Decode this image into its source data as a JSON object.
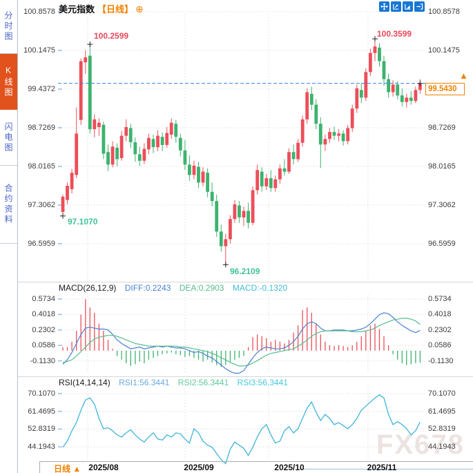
{
  "sidebar": {
    "tabs": [
      {
        "label": "分时图",
        "active": false
      },
      {
        "label": "K线图",
        "active": true
      },
      {
        "label": "闪电图",
        "active": false
      },
      {
        "label": "合约资料",
        "active": false
      }
    ]
  },
  "header": {
    "symbol": "美元指数",
    "period": "【日线】",
    "add_icon": "⊕"
  },
  "toolbar": {
    "icons": [
      "pan",
      "zoom-horizontal-axis",
      "zoom-vertical-axis",
      "exit-view"
    ]
  },
  "main_chart": {
    "y_labels": [
      "100.8578",
      "100.1475",
      "99.4372",
      "98.7269",
      "98.0165",
      "97.3062",
      "96.5959"
    ],
    "annotations": {
      "high_aug": "100.2599",
      "high_nov": "100.3599",
      "low_jul": "97.1070",
      "low_sep": "96.2109"
    },
    "current_price": "99.5430",
    "current_marker": "▲"
  },
  "macd_panel": {
    "title": "MACD(26,12,9)",
    "diff_label": "DIFF:0.2243",
    "dea_label": "DEA:0.2903",
    "macd_label": "MACD:-0.1320",
    "y_labels": [
      "0.5734",
      "0.4018",
      "0.2302",
      "0.0586",
      "-0.1130"
    ]
  },
  "rsi_panel": {
    "title": "RSI(14,14,14)",
    "rsi1_label": "RSI1:56.3441",
    "rsi2_label": "RSI2:56.3441",
    "rsi3_label": "RSI3:56.3441",
    "y_labels": [
      "70.1070",
      "61.4695",
      "52.8319",
      "44.1943"
    ]
  },
  "bottom_bar": {
    "period_label": "日线",
    "arrow": "▲",
    "x_labels": [
      "2025/08",
      "2025/09",
      "2025/10",
      "2025/11"
    ]
  },
  "watermark": "FX678",
  "colors": {
    "up": "#ec4e5a",
    "down": "#3db26e",
    "accent_orange": "#f08200",
    "active_tab_bg": "#e2521d",
    "sidebar_text": "#4863c6",
    "icon_bg": "#1777d3",
    "dashed_line": "#2a7ce0",
    "diff_line": "#4a7fd4",
    "dea_line": "#55bd8d",
    "macd_text": "#3fbcd9",
    "rsi_line": "#3fb4d8",
    "annotation_red": "#e8485a",
    "annotation_green": "#3fc39a"
  },
  "chart_data": {
    "type": "candlestick+indicators",
    "symbol": "美元指数",
    "interval": "日线",
    "x_labels": [
      "2025/08",
      "2025/09",
      "2025/10",
      "2025/11"
    ],
    "y_axis_ticks": [
      100.8578,
      100.1475,
      99.4372,
      98.7269,
      98.0165,
      97.3062,
      96.5959
    ],
    "current_price": 99.543,
    "extremes": {
      "high_aug": 100.2599,
      "high_nov": 100.3599,
      "low_jul": 97.107,
      "low_sep": 96.2109
    },
    "marker_points": [
      [
        0,
        97.107
      ],
      [
        6,
        100.2599
      ],
      [
        36,
        96.2109
      ],
      [
        69,
        100.3599
      ],
      [
        79,
        99.543
      ]
    ],
    "candles_ohlc": [
      [
        97.18,
        97.5,
        97.107,
        97.46
      ],
      [
        97.4,
        97.72,
        97.32,
        97.66
      ],
      [
        97.6,
        97.97,
        97.52,
        97.9
      ],
      [
        97.86,
        99.1,
        97.8,
        98.62
      ],
      [
        98.87,
        100.0,
        98.78,
        99.95
      ],
      [
        99.93,
        100.15,
        99.72,
        100.02
      ],
      [
        100.05,
        100.2599,
        98.62,
        98.7
      ],
      [
        98.7,
        98.97,
        98.55,
        98.88
      ],
      [
        98.74,
        98.9,
        98.58,
        98.82
      ],
      [
        98.78,
        98.84,
        98.15,
        98.25
      ],
      [
        98.28,
        98.42,
        97.93,
        98.05
      ],
      [
        98.05,
        98.48,
        98.0,
        98.38
      ],
      [
        98.36,
        98.44,
        98.02,
        98.15
      ],
      [
        98.17,
        98.67,
        98.12,
        98.58
      ],
      [
        98.58,
        98.88,
        98.48,
        98.74
      ],
      [
        98.72,
        98.8,
        98.35,
        98.46
      ],
      [
        98.46,
        98.55,
        98.1,
        98.24
      ],
      [
        98.24,
        98.38,
        98.02,
        98.12
      ],
      [
        98.12,
        98.44,
        98.06,
        98.34
      ],
      [
        98.33,
        98.62,
        98.24,
        98.54
      ],
      [
        98.52,
        98.6,
        98.26,
        98.37
      ],
      [
        98.37,
        98.68,
        98.3,
        98.58
      ],
      [
        98.56,
        98.64,
        98.3,
        98.41
      ],
      [
        98.41,
        98.74,
        98.36,
        98.63
      ],
      [
        98.6,
        98.9,
        98.52,
        98.82
      ],
      [
        98.8,
        98.87,
        98.45,
        98.56
      ],
      [
        98.54,
        98.62,
        98.2,
        98.31
      ],
      [
        98.31,
        98.5,
        97.95,
        98.05
      ],
      [
        98.05,
        98.22,
        97.75,
        97.86
      ],
      [
        97.86,
        98.12,
        97.78,
        98.03
      ],
      [
        98.01,
        98.1,
        97.62,
        97.72
      ],
      [
        97.72,
        98.0,
        97.65,
        97.92
      ],
      [
        97.9,
        97.98,
        97.45,
        97.55
      ],
      [
        97.55,
        97.72,
        97.28,
        97.38
      ],
      [
        97.38,
        97.5,
        96.72,
        96.82
      ],
      [
        96.82,
        96.95,
        96.45,
        96.55
      ],
      [
        96.55,
        96.78,
        96.2109,
        96.68
      ],
      [
        96.68,
        97.12,
        96.6,
        97.05
      ],
      [
        97.05,
        97.4,
        96.98,
        97.32
      ],
      [
        97.3,
        97.38,
        96.98,
        97.08
      ],
      [
        97.08,
        97.28,
        96.92,
        97.2
      ],
      [
        97.2,
        97.35,
        96.88,
        96.98
      ],
      [
        96.98,
        97.65,
        96.94,
        97.58
      ],
      [
        97.58,
        98.05,
        97.5,
        97.95
      ],
      [
        97.92,
        98.0,
        97.55,
        97.65
      ],
      [
        97.65,
        97.88,
        97.58,
        97.8
      ],
      [
        97.8,
        97.95,
        97.55,
        97.62
      ],
      [
        97.62,
        97.85,
        97.55,
        97.78
      ],
      [
        97.78,
        98.05,
        97.7,
        97.98
      ],
      [
        97.98,
        98.15,
        97.85,
        97.92
      ],
      [
        97.92,
        98.35,
        97.88,
        98.28
      ],
      [
        98.28,
        98.42,
        98.05,
        98.15
      ],
      [
        98.15,
        98.52,
        98.1,
        98.45
      ],
      [
        98.45,
        98.95,
        98.38,
        98.88
      ],
      [
        98.88,
        99.45,
        98.8,
        99.38
      ],
      [
        99.35,
        99.48,
        99.05,
        99.15
      ],
      [
        99.15,
        99.25,
        98.7,
        98.8
      ],
      [
        98.8,
        98.92,
        97.99,
        98.42
      ],
      [
        98.42,
        98.6,
        98.3,
        98.52
      ],
      [
        98.52,
        98.72,
        98.45,
        98.65
      ],
      [
        98.65,
        98.75,
        98.5,
        98.58
      ],
      [
        98.58,
        98.7,
        98.48,
        98.62
      ],
      [
        98.62,
        98.68,
        98.4,
        98.48
      ],
      [
        98.48,
        98.78,
        98.42,
        98.72
      ],
      [
        98.72,
        99.15,
        98.65,
        99.08
      ],
      [
        99.08,
        99.52,
        99.0,
        99.45
      ],
      [
        99.42,
        99.55,
        99.18,
        99.28
      ],
      [
        99.28,
        99.82,
        99.22,
        99.75
      ],
      [
        99.75,
        100.18,
        99.68,
        100.1
      ],
      [
        100.1,
        100.3599,
        99.95,
        100.22
      ],
      [
        100.2,
        100.28,
        99.85,
        99.95
      ],
      [
        99.95,
        100.05,
        99.5,
        99.62
      ],
      [
        99.62,
        99.72,
        99.28,
        99.38
      ],
      [
        99.38,
        99.6,
        99.3,
        99.52
      ],
      [
        99.52,
        99.58,
        99.25,
        99.32
      ],
      [
        99.32,
        99.45,
        99.12,
        99.2
      ],
      [
        99.2,
        99.35,
        99.1,
        99.28
      ],
      [
        99.28,
        99.4,
        99.15,
        99.22
      ],
      [
        99.22,
        99.48,
        99.18,
        99.42
      ],
      [
        99.42,
        99.62,
        99.35,
        99.543
      ]
    ],
    "macd": {
      "params": [
        26,
        12,
        9
      ],
      "diff": 0.2243,
      "dea": 0.2903,
      "macd": -0.132,
      "y_ticks": [
        0.5734,
        0.4018,
        0.2302,
        0.0586,
        -0.113
      ],
      "histogram": [
        0.04,
        0.04,
        0.1,
        0.22,
        0.4,
        0.57,
        0.48,
        0.42,
        0.3,
        0.22,
        0.12,
        0.02,
        -0.06,
        -0.1,
        -0.14,
        -0.17,
        -0.15,
        -0.12,
        -0.14,
        -0.1,
        -0.08,
        -0.06,
        -0.04,
        -0.03,
        -0.02,
        -0.04,
        -0.05,
        -0.07,
        -0.06,
        -0.08,
        -0.1,
        -0.12,
        -0.1,
        -0.13,
        -0.16,
        -0.18,
        -0.16,
        -0.12,
        -0.1,
        -0.08,
        -0.06,
        0.04,
        0.15,
        0.18,
        0.16,
        0.14,
        0.1,
        0.12,
        0.1,
        0.08,
        0.12,
        0.2,
        0.28,
        0.45,
        0.48,
        0.42,
        0.3,
        0.18,
        0.1,
        0.06,
        0.05,
        0.06,
        0.05,
        0.04,
        0.06,
        0.1,
        0.16,
        0.22,
        0.28,
        0.3,
        0.24,
        0.16,
        0.06,
        -0.04,
        -0.1,
        -0.14,
        -0.16,
        -0.15,
        -0.14,
        -0.132
      ],
      "diff_series": [
        -0.15,
        -0.1,
        -0.02,
        0.08,
        0.18,
        0.25,
        0.26,
        0.25,
        0.24,
        0.24,
        0.23,
        0.18,
        0.12,
        0.08,
        0.05,
        0.02,
        0.03,
        0.04,
        0.02,
        0.03,
        0.04,
        0.05,
        0.04,
        0.05,
        0.04,
        0.03,
        0.03,
        0.02,
        0.0,
        -0.02,
        -0.01,
        -0.03,
        -0.06,
        -0.08,
        -0.12,
        -0.16,
        -0.2,
        -0.23,
        -0.25,
        -0.25,
        -0.22,
        -0.15,
        -0.08,
        -0.02,
        0.02,
        0.04,
        0.03,
        0.02,
        0.02,
        0.03,
        0.06,
        0.1,
        0.16,
        0.24,
        0.3,
        0.32,
        0.3,
        0.25,
        0.22,
        0.22,
        0.23,
        0.23,
        0.23,
        0.22,
        0.22,
        0.23,
        0.24,
        0.26,
        0.3,
        0.35,
        0.4,
        0.42,
        0.41,
        0.37,
        0.32,
        0.28,
        0.25,
        0.22,
        0.2,
        0.2243
      ],
      "dea_series": [
        -0.13,
        -0.12,
        -0.1,
        -0.06,
        -0.01,
        0.04,
        0.09,
        0.13,
        0.15,
        0.16,
        0.17,
        0.17,
        0.16,
        0.14,
        0.12,
        0.1,
        0.08,
        0.07,
        0.06,
        0.05,
        0.05,
        0.05,
        0.05,
        0.05,
        0.05,
        0.05,
        0.04,
        0.04,
        0.03,
        0.02,
        0.01,
        0.0,
        -0.01,
        -0.03,
        -0.05,
        -0.08,
        -0.1,
        -0.13,
        -0.15,
        -0.17,
        -0.17,
        -0.16,
        -0.14,
        -0.11,
        -0.08,
        -0.05,
        -0.03,
        -0.02,
        -0.01,
        0.0,
        0.01,
        0.02,
        0.05,
        0.08,
        0.12,
        0.16,
        0.19,
        0.21,
        0.22,
        0.22,
        0.22,
        0.22,
        0.22,
        0.22,
        0.21,
        0.21,
        0.21,
        0.22,
        0.23,
        0.25,
        0.28,
        0.3,
        0.32,
        0.34,
        0.35,
        0.36,
        0.36,
        0.35,
        0.33,
        0.2903
      ]
    },
    "rsi": {
      "params": [
        14,
        14,
        14
      ],
      "rsi1": 56.3441,
      "rsi2": 56.3441,
      "rsi3": 56.3441,
      "y_ticks": [
        70.107,
        61.4695,
        52.8319,
        44.1943
      ],
      "series": [
        44,
        47,
        52,
        56,
        62,
        67,
        68,
        65,
        58,
        53,
        53.5,
        52,
        50,
        49,
        51,
        52.5,
        50,
        48,
        46.5,
        49,
        51,
        48,
        47.5,
        50,
        49,
        51,
        50.5,
        48,
        46,
        53,
        51,
        47,
        45,
        44,
        41,
        38,
        36,
        43,
        46.5,
        45,
        43.5,
        40,
        44,
        49,
        53,
        55,
        50,
        46,
        47,
        52,
        54,
        51,
        53,
        58,
        63,
        66,
        61,
        57,
        60,
        58,
        55,
        56,
        54.5,
        53,
        55,
        58,
        62,
        64,
        66,
        68,
        69.5,
        68,
        60,
        55,
        56.5,
        55,
        53,
        50,
        52,
        56.3441
      ]
    }
  }
}
